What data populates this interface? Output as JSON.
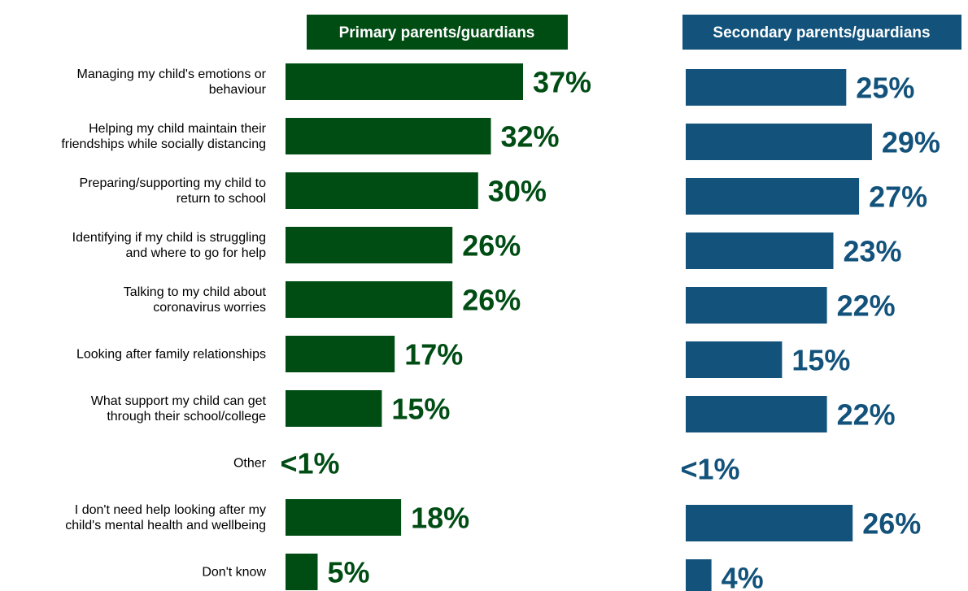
{
  "chart_data": {
    "type": "bar",
    "orientation": "horizontal",
    "categories": [
      [
        "Managing my child's emotions or",
        "behaviour"
      ],
      [
        "Helping my child maintain their",
        "friendships while socially distancing"
      ],
      [
        "Preparing/supporting my child to",
        "return to school"
      ],
      [
        "Identifying if my child is struggling",
        "and where to go for help"
      ],
      [
        "Talking to my child about",
        "coronavirus worries"
      ],
      [
        "Looking after family relationships"
      ],
      [
        "What support my child can get",
        "through their school/college"
      ],
      [
        "Other"
      ],
      [
        "I don't need help looking after my",
        "child's mental health and wellbeing"
      ],
      [
        "Don't know"
      ]
    ],
    "series": [
      {
        "name": "Primary parents/guardians",
        "color": "#004d14",
        "values": [
          37,
          32,
          30,
          26,
          26,
          17,
          15,
          0,
          18,
          5
        ],
        "labels": [
          "37%",
          "32%",
          "30%",
          "26%",
          "26%",
          "17%",
          "15%",
          "<1%",
          "18%",
          "5%"
        ]
      },
      {
        "name": "Secondary parents/guardians",
        "color": "#12527b",
        "values": [
          25,
          29,
          27,
          23,
          22,
          15,
          22,
          0,
          26,
          4
        ],
        "labels": [
          "25%",
          "29%",
          "27%",
          "23%",
          "22%",
          "15%",
          "22%",
          "<1%",
          "26%",
          "4%"
        ]
      }
    ],
    "xlim": [
      0,
      37
    ],
    "grid": false,
    "legend": "panel headers"
  }
}
